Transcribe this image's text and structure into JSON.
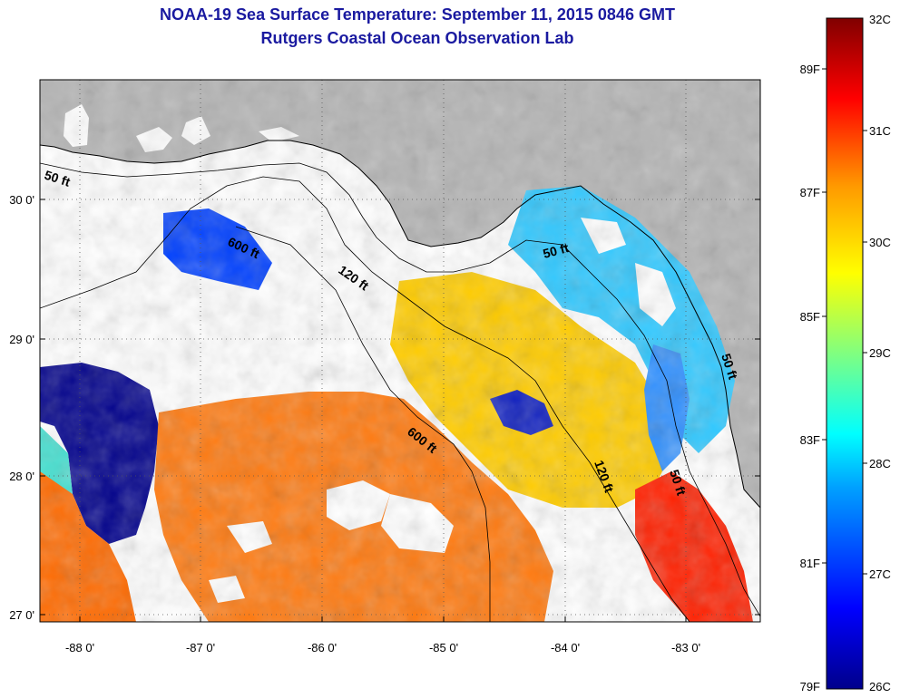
{
  "header": {
    "title": "NOAA-19 Sea Surface Temperature:  September 11, 2015 0846 GMT",
    "subtitle": "Rutgers Coastal Ocean Observation Lab"
  },
  "map": {
    "lon_ticks": [
      "-88 0'",
      "-87 0'",
      "-86 0'",
      "-85 0'",
      "-84 0'",
      "-83 0'"
    ],
    "lat_ticks": [
      "30 0'",
      "29 0'",
      "28 0'",
      "27 0'"
    ],
    "isobath_labels": [
      "50 ft",
      "600 ft",
      "120 ft",
      "600 ft",
      "50 ft",
      "120 ft",
      "50 ft",
      "50 ft"
    ],
    "colors": {
      "land": "#b4b4b4",
      "no_data": "#ffffff"
    }
  },
  "colorbar": {
    "celsius": [
      "32C",
      "31C",
      "30C",
      "29C",
      "28C",
      "27C",
      "26C"
    ],
    "fahrenheit": [
      "89F",
      "87F",
      "85F",
      "83F",
      "81F",
      "79F"
    ],
    "colors": [
      "#00008b",
      "#0000ff",
      "#00a0ff",
      "#00ffff",
      "#80ff80",
      "#ffff00",
      "#ff9900",
      "#ff0000",
      "#800000"
    ]
  }
}
